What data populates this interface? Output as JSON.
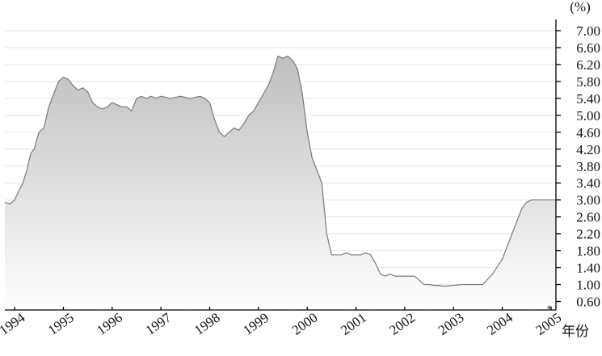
{
  "chart_data": {
    "type": "area",
    "title": "",
    "ylabel": "(%)",
    "xlabel": "年份",
    "ylim": [
      0.4,
      7.0
    ],
    "xlim": [
      1993.8,
      2005.1
    ],
    "yticks": [
      "7.00",
      "6.60",
      "6.20",
      "5.80",
      "5.40",
      "5.00",
      "4.60",
      "4.20",
      "3.80",
      "3.40",
      "3.00",
      "2.60",
      "2.20",
      "1.80",
      "1.40",
      "1.00",
      "0.60"
    ],
    "xticks": [
      "1994",
      "1995",
      "1996",
      "1997",
      "1998",
      "1999",
      "2000",
      "2001",
      "2002",
      "2003",
      "2004",
      "2005"
    ],
    "annotation": "*",
    "grid": true,
    "colors": {
      "fill_top": "#bfbfbf",
      "fill_bottom": "#ffffff",
      "line": "#7a7a7a",
      "grid": "#e6e6e6",
      "axis": "#000000"
    },
    "series": [
      {
        "x": [
          1993.8,
          1993.9,
          1994.0,
          1994.08,
          1994.17,
          1994.25,
          1994.33,
          1994.4,
          1994.5,
          1994.6,
          1994.7,
          1994.8,
          1994.9,
          1995.0,
          1995.1,
          1995.2,
          1995.3,
          1995.4,
          1995.5,
          1995.6,
          1995.7,
          1995.8,
          1995.9,
          1996.0,
          1996.1,
          1996.2,
          1996.3,
          1996.4,
          1996.5,
          1996.6,
          1996.7,
          1996.8,
          1996.9,
          1997.0,
          1997.2,
          1997.4,
          1997.6,
          1997.8,
          1997.9,
          1998.0,
          1998.1,
          1998.2,
          1998.3,
          1998.4,
          1998.5,
          1998.6,
          1998.7,
          1998.8,
          1998.9,
          1999.0,
          1999.1,
          1999.2,
          1999.3,
          1999.4,
          1999.5,
          1999.6,
          1999.7,
          1999.8,
          1999.9,
          2000.0,
          2000.1,
          2000.2,
          2000.3,
          2000.4,
          2000.5,
          2000.6,
          2000.7,
          2000.8,
          2000.9,
          2001.0,
          2001.1,
          2001.2,
          2001.3,
          2001.4,
          2001.5,
          2001.6,
          2001.7,
          2001.8,
          2001.9,
          2002.0,
          2002.2,
          2002.4,
          2002.5,
          2002.6,
          2002.7,
          2002.8,
          2003.0,
          2003.15,
          2003.25,
          2003.4,
          2003.6,
          2003.8,
          2004.0,
          2004.1,
          2004.2,
          2004.3,
          2004.4,
          2004.5,
          2004.6,
          2004.7,
          2004.8,
          2004.9,
          2005.0,
          2005.1
        ],
        "y": [
          2.95,
          2.9,
          3.0,
          3.2,
          3.4,
          3.7,
          4.1,
          4.2,
          4.6,
          4.7,
          5.2,
          5.5,
          5.8,
          5.9,
          5.85,
          5.7,
          5.6,
          5.65,
          5.55,
          5.3,
          5.2,
          5.15,
          5.2,
          5.3,
          5.25,
          5.2,
          5.2,
          5.1,
          5.4,
          5.45,
          5.4,
          5.45,
          5.4,
          5.45,
          5.4,
          5.45,
          5.4,
          5.45,
          5.4,
          5.3,
          4.9,
          4.6,
          4.5,
          4.6,
          4.7,
          4.65,
          4.8,
          5.0,
          5.1,
          5.3,
          5.5,
          5.7,
          6.0,
          6.4,
          6.35,
          6.4,
          6.3,
          6.1,
          5.5,
          4.6,
          4.0,
          3.7,
          3.4,
          2.2,
          1.7,
          1.7,
          1.7,
          1.75,
          1.7,
          1.7,
          1.7,
          1.75,
          1.7,
          1.5,
          1.25,
          1.2,
          1.25,
          1.2,
          1.2,
          1.2,
          1.2,
          1.0,
          1.0,
          0.98,
          0.98,
          0.96,
          0.98,
          1.0,
          1.0,
          1.0,
          1.0,
          1.25,
          1.6,
          1.9,
          2.2,
          2.5,
          2.8,
          2.95,
          3.0,
          3.0,
          3.0,
          3.0,
          3.0,
          3.0
        ]
      }
    ]
  }
}
